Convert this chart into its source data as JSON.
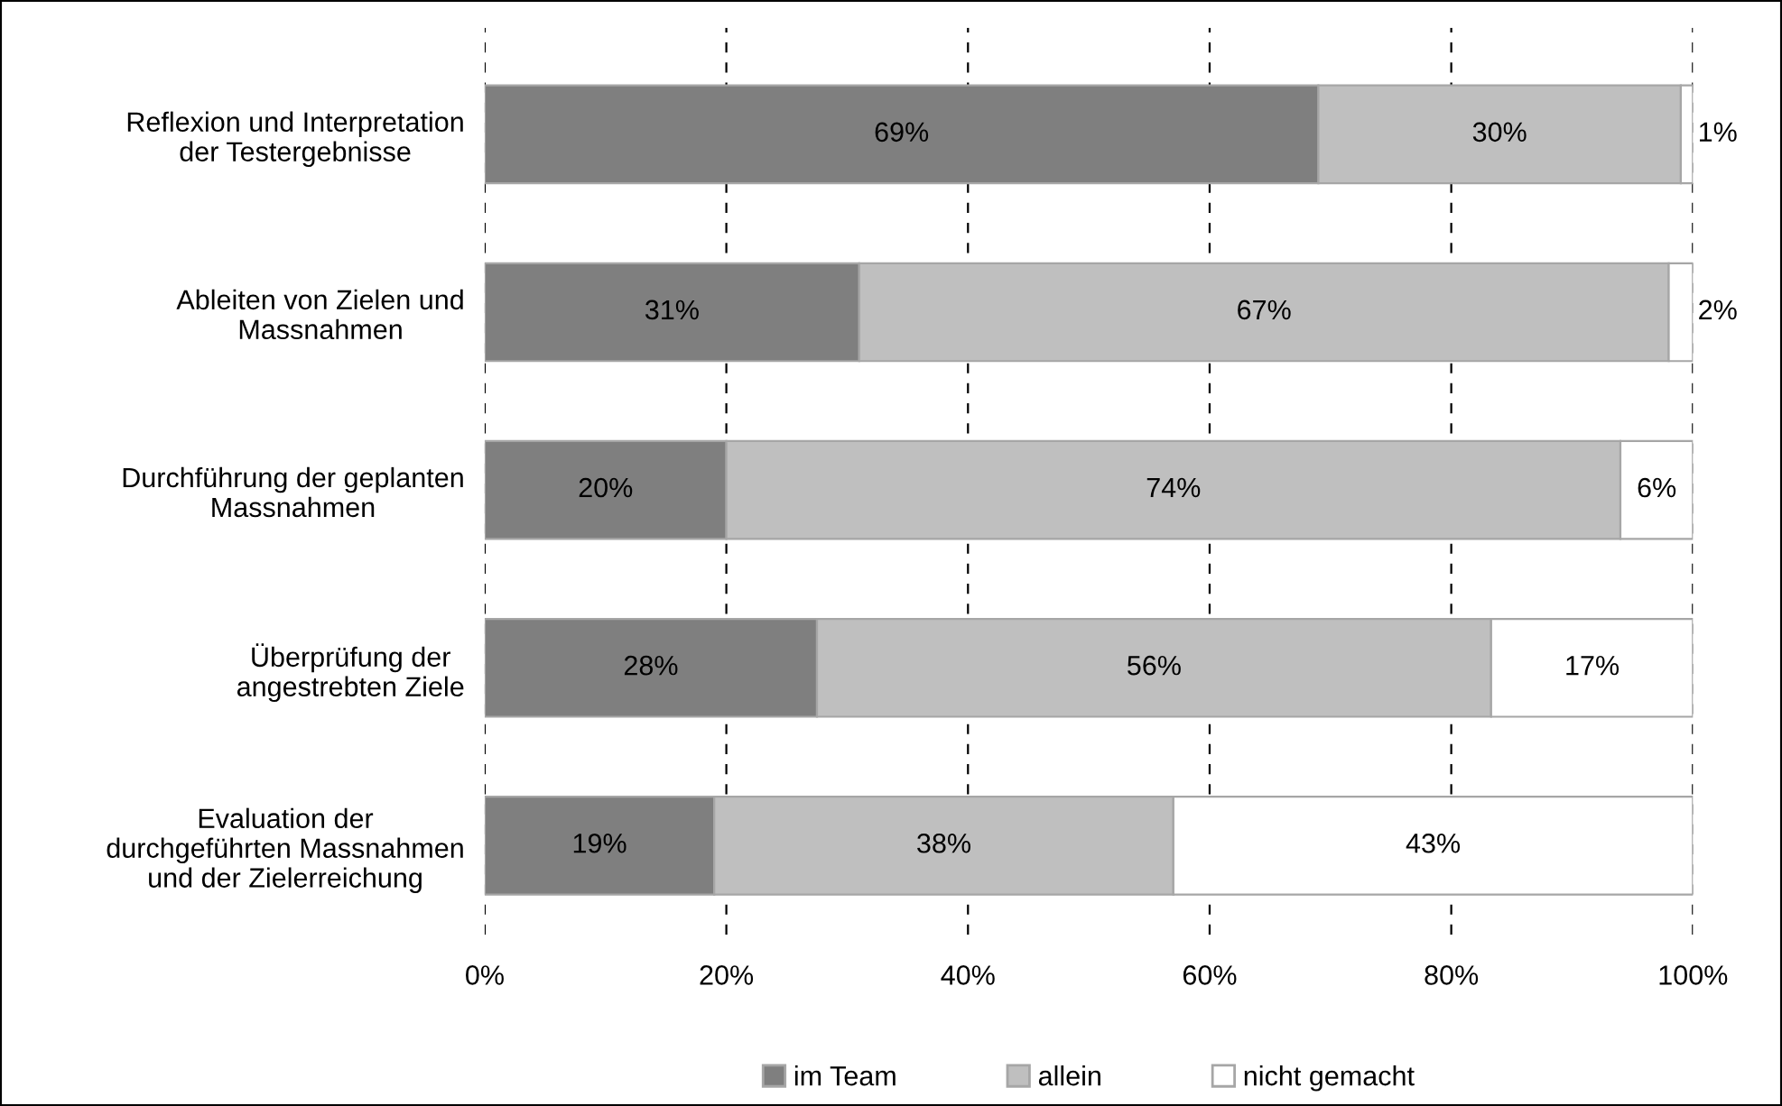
{
  "chart_data": {
    "type": "bar",
    "orientation": "horizontal",
    "stacked": true,
    "categories": [
      "Reflexion und Interpretation\nder Testergebnisse",
      "Ableiten von Zielen und\nMassnahmen",
      "Durchführung der geplanten\nMassnahmen",
      "Überprüfung der\nangestrebten Ziele",
      "Evaluation der\ndurchgeführten Massnahmen\nund der Zielerreichung"
    ],
    "series": [
      {
        "name": "im Team",
        "color": "#7f7f7f",
        "values": [
          69,
          31,
          20,
          27.5,
          19
        ]
      },
      {
        "name": "allein",
        "color": "#bfbfbf",
        "values": [
          30,
          67,
          74,
          55.8,
          38
        ]
      },
      {
        "name": "nicht gemacht",
        "color": "#ffffff",
        "values": [
          1,
          2,
          6,
          16.7,
          43
        ]
      }
    ],
    "xlim": [
      0,
      100
    ],
    "xticks": [
      {
        "value": 0,
        "label": "0%"
      },
      {
        "value": 20,
        "label": "20%"
      },
      {
        "value": 40,
        "label": "40%"
      },
      {
        "value": 60,
        "label": "60%"
      },
      {
        "value": 80,
        "label": "80%"
      },
      {
        "value": 100,
        "label": "100%"
      }
    ],
    "value_labels": [
      [
        "69%",
        "31%",
        "20%",
        "28%",
        "19%"
      ],
      [
        "30%",
        "67%",
        "74%",
        "56%",
        "38%"
      ],
      [
        "1%",
        "2%",
        "6%",
        "17%",
        "43%"
      ]
    ],
    "grid": "x",
    "legend": "bottom"
  }
}
